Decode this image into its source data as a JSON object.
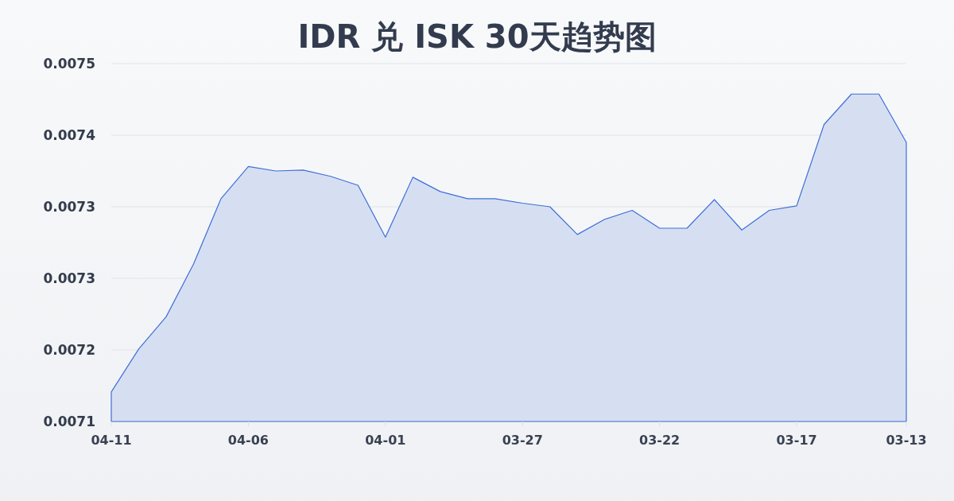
{
  "chart_data": {
    "type": "area",
    "title": "IDR 兑 ISK 30天趋势图",
    "categories": [
      "04-11",
      null,
      null,
      null,
      null,
      "04-06",
      null,
      null,
      null,
      null,
      "04-01",
      null,
      null,
      null,
      null,
      "03-27",
      null,
      null,
      null,
      null,
      "03-22",
      null,
      null,
      null,
      null,
      "03-17",
      null,
      null,
      null,
      "03-13"
    ],
    "values": [
      0.007133,
      0.007181,
      0.007217,
      0.007276,
      0.007349,
      0.007385,
      0.00738,
      0.007381,
      0.007374,
      0.007364,
      0.007306,
      0.007373,
      0.007357,
      0.007349,
      0.007349,
      0.007344,
      0.00734,
      0.007309,
      0.007326,
      0.007336,
      0.007316,
      0.007316,
      0.007348,
      0.007314,
      0.007336,
      0.007341,
      0.007432,
      0.007466,
      0.007466,
      0.007412
    ],
    "color": "#3f6fd6",
    "ylim": [
      0.0071,
      0.0075
    ],
    "yticks": [
      0.0071,
      {
        "value": 0.00718,
        "label": "0.0072"
      },
      {
        "value": 0.00726,
        "label": "0.0073"
      },
      {
        "value": 0.00734,
        "label": "0.0073"
      },
      {
        "value": 0.00742,
        "label": "0.0074"
      },
      0.0075
    ],
    "grid": "y"
  }
}
